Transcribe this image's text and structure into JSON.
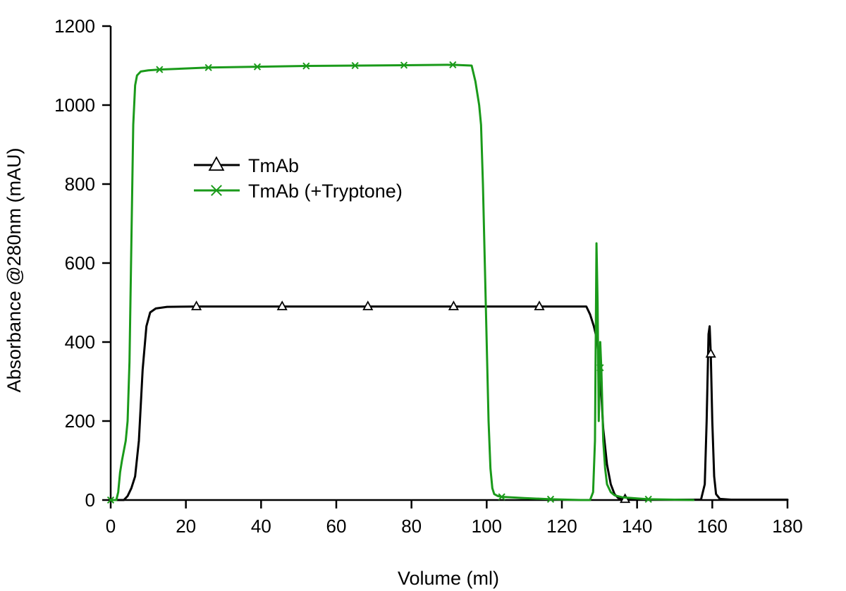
{
  "chart_data": {
    "type": "line",
    "title": "",
    "xlabel": "Volume (ml)",
    "ylabel": "Absorbance @280nm (mAU)",
    "xlim": [
      0,
      180
    ],
    "ylim": [
      0,
      1200
    ],
    "xticks": [
      0,
      20,
      40,
      60,
      80,
      100,
      120,
      140,
      160,
      180
    ],
    "yticks": [
      0,
      200,
      400,
      600,
      800,
      1000,
      1200
    ],
    "grid": false,
    "legend": "upper-left",
    "series": [
      {
        "name": "TmAb",
        "color": "#000000",
        "marker": "triangle",
        "x": [
          0,
          3.5,
          4.5,
          5.5,
          6.5,
          7.5,
          8.5,
          9.5,
          10.5,
          12,
          15,
          22.8,
          45.6,
          68.4,
          91.2,
          114,
          126.5,
          127.5,
          128.5,
          129.5,
          130.3,
          131,
          132,
          133,
          134,
          135,
          136.8,
          140,
          150,
          157,
          158,
          158.5,
          159,
          159.3,
          159.6,
          160,
          160.5,
          161,
          162,
          165,
          180
        ],
        "y": [
          0,
          0,
          10,
          30,
          60,
          150,
          330,
          440,
          475,
          485,
          489,
          490,
          490,
          490,
          490,
          490,
          490,
          470,
          440,
          400,
          300,
          180,
          90,
          40,
          15,
          5,
          2,
          1,
          1,
          1,
          40,
          200,
          420,
          440,
          370,
          200,
          60,
          15,
          3,
          1,
          1
        ],
        "marker_x": [
          22.8,
          45.6,
          68.4,
          91.2,
          114,
          136.8,
          159.6
        ],
        "marker_y": [
          490,
          490,
          490,
          490,
          490,
          2,
          370
        ]
      },
      {
        "name": "TmAb (+Tryptone)",
        "color": "#1a9a1a",
        "marker": "x",
        "x": [
          0,
          1.5,
          2,
          2.5,
          3,
          4,
          4.5,
          5,
          5.5,
          6,
          6.5,
          7,
          8,
          10,
          13,
          26,
          39,
          52,
          65,
          78,
          91,
          96,
          97,
          98,
          98.5,
          99,
          99.5,
          100,
          100.5,
          101,
          101.5,
          102,
          103,
          104,
          110,
          117,
          125,
          127.5,
          128.3,
          128.8,
          129.2,
          129.5,
          129.8,
          130.2,
          130.5,
          131,
          131.5,
          132,
          133,
          134,
          136,
          140,
          143,
          150,
          155
        ],
        "y": [
          0,
          0,
          20,
          70,
          100,
          150,
          200,
          350,
          650,
          950,
          1050,
          1075,
          1085,
          1088,
          1090,
          1095,
          1097,
          1099,
          1100,
          1101,
          1102,
          1100,
          1060,
          1000,
          950,
          800,
          600,
          400,
          200,
          80,
          30,
          15,
          10,
          8,
          5,
          2,
          0,
          0,
          20,
          150,
          650,
          500,
          200,
          400,
          330,
          150,
          80,
          40,
          20,
          12,
          7,
          4,
          2,
          1,
          0
        ],
        "marker_x": [
          0,
          13,
          26,
          39,
          52,
          65,
          78,
          91,
          104,
          117,
          130.2,
          143
        ],
        "marker_y": [
          0,
          1090,
          1095,
          1097,
          1099,
          1100,
          1101,
          1102,
          8,
          2,
          335,
          2
        ]
      }
    ]
  }
}
